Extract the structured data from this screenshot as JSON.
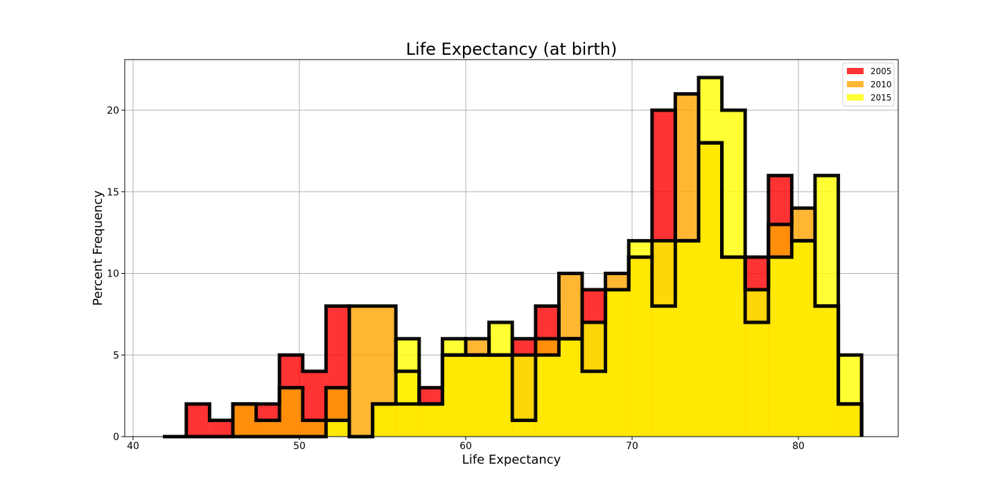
{
  "chart_data": {
    "type": "bar",
    "title": "Life Expectancy (at birth)",
    "xlabel": "Life Expectancy",
    "ylabel": "Percent Frequency",
    "xlim": [
      39.5,
      86
    ],
    "ylim": [
      0,
      23.1
    ],
    "xticks": [
      40,
      50,
      60,
      70,
      80
    ],
    "yticks": [
      0,
      5,
      10,
      15,
      20
    ],
    "grid": true,
    "legend_position": "top-right",
    "bin_edges": [
      41.8,
      43.2,
      44.6,
      46.0,
      47.4,
      48.8,
      50.2,
      51.6,
      53.0,
      54.4,
      55.8,
      57.2,
      58.6,
      60.0,
      61.4,
      62.8,
      64.2,
      65.6,
      67.0,
      68.4,
      69.8,
      71.2,
      72.6,
      74.0,
      75.4,
      76.8,
      78.2,
      79.6,
      81.0,
      82.4,
      83.8
    ],
    "series": [
      {
        "name": "2005",
        "color": "#ff0000",
        "x": [
          42.5,
          43.9,
          45.3,
          46.7,
          48.1,
          49.5,
          50.9,
          52.3,
          53.7,
          55.1,
          56.5,
          57.9,
          59.3,
          60.7,
          62.1,
          63.5,
          64.9,
          66.3,
          67.7,
          69.1,
          70.5,
          71.9,
          73.3,
          74.7,
          76.1,
          77.5,
          78.9,
          80.3,
          81.7,
          83.1
        ],
        "values": [
          0,
          2,
          1,
          2,
          2,
          5,
          4,
          8,
          0,
          2,
          2,
          3,
          5,
          5,
          5,
          6,
          8,
          6,
          9,
          9,
          11,
          20,
          12,
          18,
          11,
          11,
          16,
          12,
          8,
          2
        ]
      },
      {
        "name": "2010",
        "color": "#ffa500",
        "x": [
          42.5,
          43.9,
          45.3,
          46.7,
          48.1,
          49.5,
          50.9,
          52.3,
          53.7,
          55.1,
          56.5,
          57.9,
          59.3,
          60.7,
          62.1,
          63.5,
          64.9,
          66.3,
          67.7,
          69.1,
          70.5,
          71.9,
          73.3,
          74.7,
          76.1,
          77.5,
          78.9,
          80.3,
          81.7,
          83.1
        ],
        "values": [
          0,
          0,
          0,
          2,
          1,
          3,
          1,
          3,
          8,
          8,
          4,
          2,
          5,
          6,
          5,
          1,
          6,
          10,
          4,
          10,
          11,
          8,
          21,
          18,
          11,
          7,
          13,
          14,
          8,
          2
        ]
      },
      {
        "name": "2015",
        "color": "#ffff00",
        "x": [
          42.5,
          43.9,
          45.3,
          46.7,
          48.1,
          49.5,
          50.9,
          52.3,
          53.7,
          55.1,
          56.5,
          57.9,
          59.3,
          60.7,
          62.1,
          63.5,
          64.9,
          66.3,
          67.7,
          69.1,
          70.5,
          71.9,
          73.3,
          74.7,
          76.1,
          77.5,
          78.9,
          80.3,
          81.7,
          83.1
        ],
        "values": [
          0,
          0,
          0,
          0,
          0,
          0,
          0,
          1,
          0,
          2,
          6,
          2,
          6,
          5,
          7,
          5,
          5,
          6,
          7,
          9,
          12,
          12,
          12,
          22,
          20,
          9,
          11,
          12,
          16,
          5
        ]
      }
    ]
  }
}
